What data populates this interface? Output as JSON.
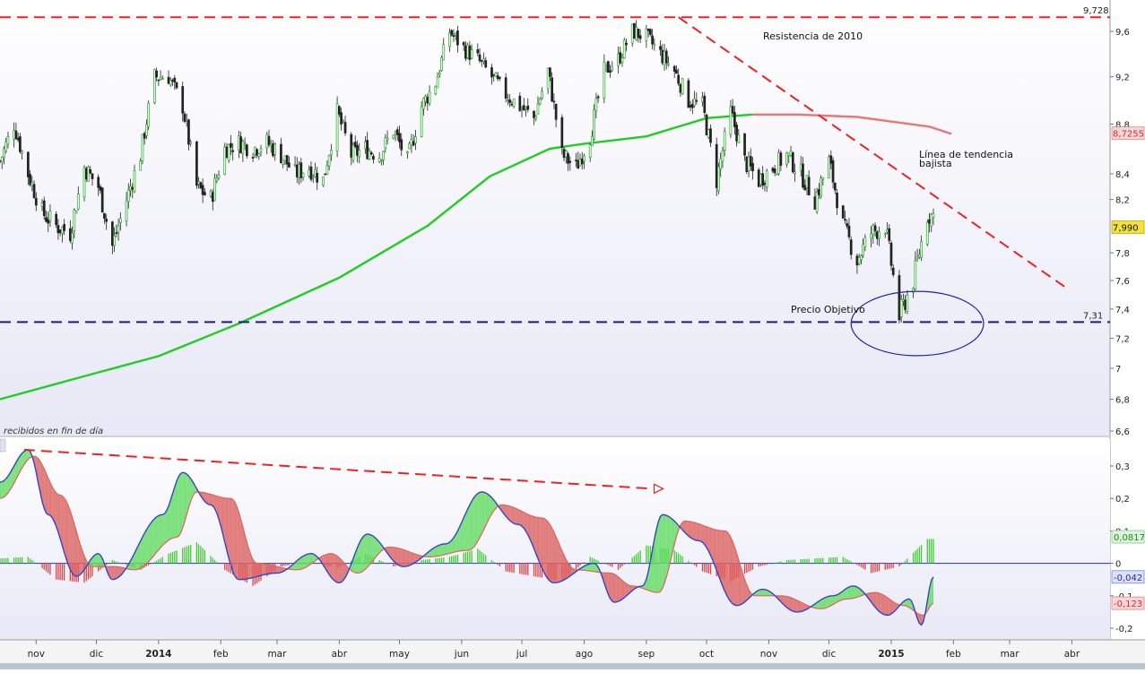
{
  "labels": {
    "resistance": "Resistencia de 2010",
    "trend_line_1": "Línea de tendencia",
    "trend_line_2": "bajista",
    "target": "Precio Objetivo",
    "panel_caption": "recibidos en fin de día"
  },
  "colors": {
    "bull": "#22aa22",
    "bear": "#222222",
    "sma200": "#22cc22",
    "sma_after": "#e87777",
    "dashed_red": "#ee2222",
    "dashed_blue": "#1a1a8a",
    "hist_pos": "#44cc33",
    "hist_neg": "#dd4444",
    "fill_pos": "#66dd66",
    "fill_neg": "#dd6666",
    "macd_line": "#3344cc",
    "signal_line": "#dd6655",
    "circle": "#2222aa"
  },
  "chart_data": [
    {
      "type": "candlestick",
      "x_range": [
        "2013-10-14",
        "2015-04-20"
      ],
      "ylim": [
        6.6,
        9.8
      ],
      "y_ticks": [
        "9,6",
        "9,2",
        "8,8",
        "8,4",
        "8,2",
        "7,8",
        "7,6",
        "7,4",
        "7,2",
        "7",
        "6,8",
        "6,6"
      ],
      "y_tick_values": [
        9.6,
        9.2,
        8.8,
        8.4,
        8.2,
        7.8,
        7.6,
        7.4,
        7.2,
        7.0,
        6.8,
        6.6
      ],
      "x_tick_labels": [
        "nov",
        "dic",
        "2014",
        "feb",
        "mar",
        "abr",
        "may",
        "jun",
        "jul",
        "ago",
        "sep",
        "oct",
        "nov",
        "dic",
        "2015",
        "feb",
        "mar",
        "abr"
      ],
      "x_tick_dates": [
        "2013-11-01",
        "2013-12-01",
        "2014-01-01",
        "2014-02-01",
        "2014-03-01",
        "2014-04-01",
        "2014-05-01",
        "2014-06-01",
        "2014-07-01",
        "2014-08-01",
        "2014-09-01",
        "2014-10-01",
        "2014-11-01",
        "2014-12-01",
        "2015-01-01",
        "2015-02-01",
        "2015-03-01",
        "2015-04-01"
      ],
      "close_series": {
        "dates": [
          "2013-10-14",
          "2013-10-21",
          "2013-10-28",
          "2013-11-04",
          "2013-11-11",
          "2013-11-18",
          "2013-11-25",
          "2013-12-02",
          "2013-12-09",
          "2013-12-16",
          "2013-12-23",
          "2013-12-30",
          "2014-01-06",
          "2014-01-13",
          "2014-01-20",
          "2014-01-27",
          "2014-02-03",
          "2014-02-10",
          "2014-02-17",
          "2014-02-24",
          "2014-03-03",
          "2014-03-10",
          "2014-03-17",
          "2014-03-24",
          "2014-03-31",
          "2014-04-07",
          "2014-04-14",
          "2014-04-21",
          "2014-04-28",
          "2014-05-05",
          "2014-05-12",
          "2014-05-19",
          "2014-05-26",
          "2014-06-02",
          "2014-06-09",
          "2014-06-16",
          "2014-06-23",
          "2014-06-30",
          "2014-07-07",
          "2014-07-14",
          "2014-07-21",
          "2014-07-28",
          "2014-08-04",
          "2014-08-11",
          "2014-08-18",
          "2014-08-25",
          "2014-09-01",
          "2014-09-08",
          "2014-09-15",
          "2014-09-22",
          "2014-09-29",
          "2014-10-06",
          "2014-10-13",
          "2014-10-20",
          "2014-10-27",
          "2014-11-03",
          "2014-11-10",
          "2014-11-17",
          "2014-11-24",
          "2014-12-01",
          "2014-12-08",
          "2014-12-15",
          "2014-12-22",
          "2014-12-29",
          "2015-01-05",
          "2015-01-12",
          "2015-01-19"
        ],
        "close": [
          8.5,
          8.8,
          8.4,
          8.1,
          8.0,
          7.95,
          8.45,
          8.3,
          7.85,
          8.2,
          8.55,
          9.2,
          9.2,
          8.95,
          8.3,
          8.2,
          8.6,
          8.65,
          8.6,
          8.65,
          8.55,
          8.4,
          8.45,
          8.35,
          8.9,
          8.55,
          8.6,
          8.55,
          8.75,
          8.5,
          8.95,
          9.15,
          9.6,
          9.45,
          9.35,
          9.2,
          9.05,
          8.95,
          8.85,
          9.25,
          8.55,
          8.45,
          8.7,
          9.25,
          9.35,
          9.6,
          9.55,
          9.4,
          9.25,
          9.0,
          8.95,
          8.35,
          8.9,
          8.5,
          8.35,
          8.45,
          8.55,
          8.4,
          8.2,
          8.5,
          8.0,
          7.75,
          7.95,
          8.0,
          7.35,
          7.6,
          8.08
        ]
      },
      "series": [
        {
          "name": "",
          "type": "line",
          "color": "green",
          "dates": [
            "2013-10-14",
            "2013-12-01",
            "2014-01-01",
            "2014-02-10",
            "2014-04-01",
            "2014-05-15",
            "2014-06-15",
            "2014-07-15",
            "2014-08-01",
            "2014-09-01",
            "2014-10-01",
            "2014-10-24"
          ],
          "values": [
            6.8,
            6.97,
            7.08,
            7.3,
            7.62,
            8.0,
            8.38,
            8.6,
            8.64,
            8.7,
            8.85,
            8.88
          ]
        },
        {
          "name": "",
          "type": "line",
          "color": "red",
          "dates": [
            "2014-10-24",
            "2014-11-15",
            "2014-12-15",
            "2015-01-20",
            "2015-01-31"
          ],
          "values": [
            8.88,
            8.88,
            8.86,
            8.78,
            8.72
          ]
        }
      ],
      "price_tags": [
        {
          "label": "9,728",
          "value": 9.728,
          "style": "plain"
        },
        {
          "label": "8,7255",
          "value": 8.7255,
          "style": "red"
        },
        {
          "label": "7,990",
          "value": 7.99,
          "style": "yellow"
        },
        {
          "label": "7,31",
          "value": 7.31,
          "style": "plain"
        }
      ],
      "horizontal_lines": [
        {
          "value": 9.728,
          "style": "dashed",
          "color": "red"
        },
        {
          "value": 7.31,
          "style": "dashed",
          "color": "blue"
        }
      ],
      "trend_lines": [
        {
          "from": [
            "2014-09-17",
            9.728
          ],
          "to": [
            "2015-03-29",
            7.55
          ],
          "style": "dashed",
          "color": "red"
        }
      ],
      "circle_annotation": {
        "center": [
          "2015-01-14",
          7.3
        ],
        "radius_days": 11,
        "radius_value": 0.4
      }
    },
    {
      "type": "line",
      "ylim": [
        -0.24,
        0.38
      ],
      "y_ticks": [
        "0,3",
        "0,2",
        "0,1",
        "0",
        "-0,1",
        "-0,2"
      ],
      "y_tick_values": [
        0.3,
        0.2,
        0.1,
        0.0,
        -0.1,
        -0.2
      ],
      "price_tags": [
        {
          "label": "0,0817",
          "value": 0.0817,
          "style": "green"
        },
        {
          "label": "-0,042",
          "value": -0.042,
          "style": "blue"
        },
        {
          "label": "-0,123",
          "value": -0.123,
          "style": "red"
        }
      ],
      "series": [
        {
          "name": "",
          "type": "line",
          "color": "blue",
          "dates": [
            "2013-10-14",
            "2013-10-28",
            "2013-11-07",
            "2013-11-21",
            "2013-12-02",
            "2013-12-09",
            "2014-01-03",
            "2014-01-13",
            "2014-01-27",
            "2014-02-10",
            "2014-03-01",
            "2014-03-18",
            "2014-04-01",
            "2014-04-15",
            "2014-05-03",
            "2014-05-24",
            "2014-06-11",
            "2014-06-29",
            "2014-07-17",
            "2014-08-06",
            "2014-08-16",
            "2014-08-30",
            "2014-09-09",
            "2014-09-27",
            "2014-10-16",
            "2014-10-29",
            "2014-11-15",
            "2014-12-03",
            "2014-12-13",
            "2014-12-30",
            "2015-01-10",
            "2015-01-16",
            "2015-01-22"
          ],
          "values": [
            0.25,
            0.35,
            0.15,
            -0.04,
            0.03,
            -0.05,
            0.15,
            0.28,
            0.18,
            -0.05,
            -0.03,
            0.03,
            -0.06,
            0.09,
            -0.01,
            0.06,
            0.22,
            0.12,
            -0.06,
            0.0,
            -0.12,
            -0.07,
            0.15,
            0.07,
            -0.13,
            -0.08,
            -0.15,
            -0.1,
            -0.07,
            -0.16,
            -0.11,
            -0.19,
            -0.042
          ]
        },
        {
          "name": "",
          "type": "line",
          "color": "red",
          "dates": [
            "2013-10-14",
            "2013-10-31",
            "2013-11-13",
            "2013-11-29",
            "2013-12-10",
            "2013-12-20",
            "2014-01-10",
            "2014-01-20",
            "2014-02-06",
            "2014-02-19",
            "2014-03-11",
            "2014-03-28",
            "2014-04-10",
            "2014-04-26",
            "2014-05-16",
            "2014-06-04",
            "2014-06-21",
            "2014-07-11",
            "2014-07-28",
            "2014-08-14",
            "2014-08-25",
            "2014-09-07",
            "2014-09-20",
            "2014-10-10",
            "2014-10-25",
            "2014-11-07",
            "2014-11-27",
            "2014-12-10",
            "2014-12-24",
            "2015-01-07",
            "2015-01-17",
            "2015-01-22"
          ],
          "values": [
            0.2,
            0.33,
            0.21,
            -0.01,
            -0.01,
            -0.02,
            0.08,
            0.22,
            0.2,
            0.0,
            -0.02,
            0.03,
            -0.03,
            0.05,
            0.02,
            0.04,
            0.18,
            0.14,
            -0.02,
            -0.03,
            -0.07,
            -0.09,
            0.13,
            0.1,
            -0.1,
            -0.1,
            -0.14,
            -0.11,
            -0.09,
            -0.13,
            -0.16,
            -0.123
          ]
        }
      ],
      "histogram": {
        "dates": [
          "2013-10-14",
          "2013-10-28",
          "2013-11-11",
          "2013-11-25",
          "2013-12-09",
          "2013-12-23",
          "2014-01-06",
          "2014-01-20",
          "2014-02-03",
          "2014-02-17",
          "2014-03-03",
          "2014-03-17",
          "2014-03-31",
          "2014-04-14",
          "2014-04-28",
          "2014-05-12",
          "2014-05-26",
          "2014-06-09",
          "2014-06-23",
          "2014-07-07",
          "2014-07-21",
          "2014-08-04",
          "2014-08-18",
          "2014-09-01",
          "2014-09-15",
          "2014-09-29",
          "2014-10-13",
          "2014-10-27",
          "2014-11-10",
          "2014-11-24",
          "2014-12-08",
          "2014-12-22",
          "2015-01-05",
          "2015-01-19"
        ],
        "values": [
          0.015,
          0.02,
          -0.05,
          -0.06,
          0.01,
          -0.02,
          0.03,
          0.065,
          -0.02,
          -0.07,
          -0.01,
          0.005,
          -0.015,
          0.03,
          -0.01,
          0.01,
          0.02,
          0.045,
          -0.025,
          -0.04,
          -0.055,
          0.02,
          -0.02,
          0.055,
          0.04,
          -0.025,
          -0.055,
          -0.01,
          0.01,
          0.015,
          0.02,
          -0.03,
          -0.01,
          0.075
        ]
      },
      "trend_lines": [
        {
          "from": [
            "2013-10-26",
            0.35
          ],
          "to": [
            "2014-09-04",
            0.23
          ],
          "style": "dashed",
          "color": "red",
          "arrow_end": true
        }
      ]
    }
  ]
}
